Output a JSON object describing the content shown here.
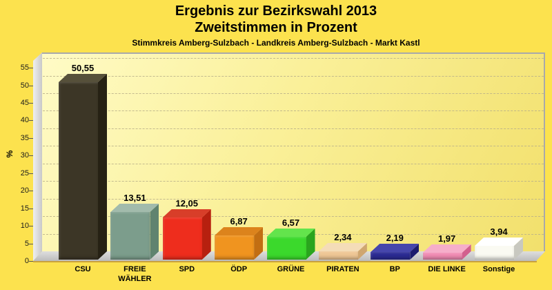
{
  "page": {
    "title_line1": "Ergebnis zur Bezirkswahl 2013",
    "title_line2": "Zweitstimmen in Prozent",
    "caption": "Stimmkreis Amberg-Sulzbach - Landkreis Amberg-Sulzbach - Markt Kastl"
  },
  "colors": {
    "page_bg": "#FCE24E",
    "title_text": "#000000",
    "wall_gradient_start": "#FFFBC6",
    "wall_gradient_end": "#F2E06C",
    "wall_border": "#A9A9A9",
    "left_wall": "#DCDCDC",
    "floor": "#C6C6C6",
    "grid_line": "#B9B08A",
    "baseline_gold": "#C9A13C",
    "tick_text": "#1A1A1A"
  },
  "chart_data": {
    "type": "bar",
    "style": "3d-column",
    "title": "Ergebnis zur Bezirkswahl 2013 - Zweitstimmen in Prozent",
    "subtitle": "Stimmkreis Amberg-Sulzbach - Landkreis Amberg-Sulzbach - Markt Kastl",
    "xlabel": "",
    "ylabel": "%",
    "ylim": [
      0,
      57
    ],
    "yticks": [
      0,
      5,
      10,
      15,
      20,
      25,
      30,
      35,
      40,
      45,
      50,
      55
    ],
    "grid": "horizontal-dashed",
    "legend_position": "none",
    "decimal_format": "german-comma",
    "categories": [
      "CSU",
      "FREIE WÄHLER",
      "SPD",
      "ÖDP",
      "GRÜNE",
      "PIRATEN",
      "BP",
      "DIE LINKE",
      "Sonstige"
    ],
    "values": [
      50.55,
      13.51,
      12.05,
      6.87,
      6.57,
      2.34,
      2.19,
      1.97,
      3.94
    ],
    "bars": [
      {
        "id": "csu",
        "label_lines": [
          "CSU"
        ],
        "value": 50.55,
        "value_label": "50,55",
        "front": "#3C3626",
        "top": "#56503A",
        "side": "#262114"
      },
      {
        "id": "freie-waehler",
        "label_lines": [
          "FREIE",
          "WÄHLER"
        ],
        "value": 13.51,
        "value_label": "13,51",
        "front": "#7C9D8C",
        "top": "#A2BBAC",
        "side": "#60836F"
      },
      {
        "id": "spd",
        "label_lines": [
          "SPD"
        ],
        "value": 12.05,
        "value_label": "12,05",
        "front": "#EE2D1D",
        "top": "#D83E29",
        "side": "#B7200F"
      },
      {
        "id": "oedp",
        "label_lines": [
          "ÖDP"
        ],
        "value": 6.87,
        "value_label": "6,87",
        "front": "#F0941F",
        "top": "#DC831C",
        "side": "#C26E12"
      },
      {
        "id": "gruene",
        "label_lines": [
          "GRÜNE"
        ],
        "value": 6.57,
        "value_label": "6,57",
        "front": "#3BD92C",
        "top": "#63E44C",
        "side": "#2AA51E"
      },
      {
        "id": "piraten",
        "label_lines": [
          "PIRATEN"
        ],
        "value": 2.34,
        "value_label": "2,34",
        "front": "#EFC795",
        "top": "#F4DCB8",
        "side": "#CFA670"
      },
      {
        "id": "bp",
        "label_lines": [
          "BP"
        ],
        "value": 2.19,
        "value_label": "2,19",
        "front": "#2B2B94",
        "top": "#4646AC",
        "side": "#1C1C6E"
      },
      {
        "id": "die-linke",
        "label_lines": [
          "DIE LINKE"
        ],
        "value": 1.97,
        "value_label": "1,97",
        "front": "#F28CB4",
        "top": "#F6AECA",
        "side": "#D2608E"
      },
      {
        "id": "sonstige",
        "label_lines": [
          "Sonstige"
        ],
        "value": 3.94,
        "value_label": "3,94",
        "front": "#FAFAF2",
        "top": "#FFFFFF",
        "side": "#C8C8C0"
      }
    ]
  }
}
